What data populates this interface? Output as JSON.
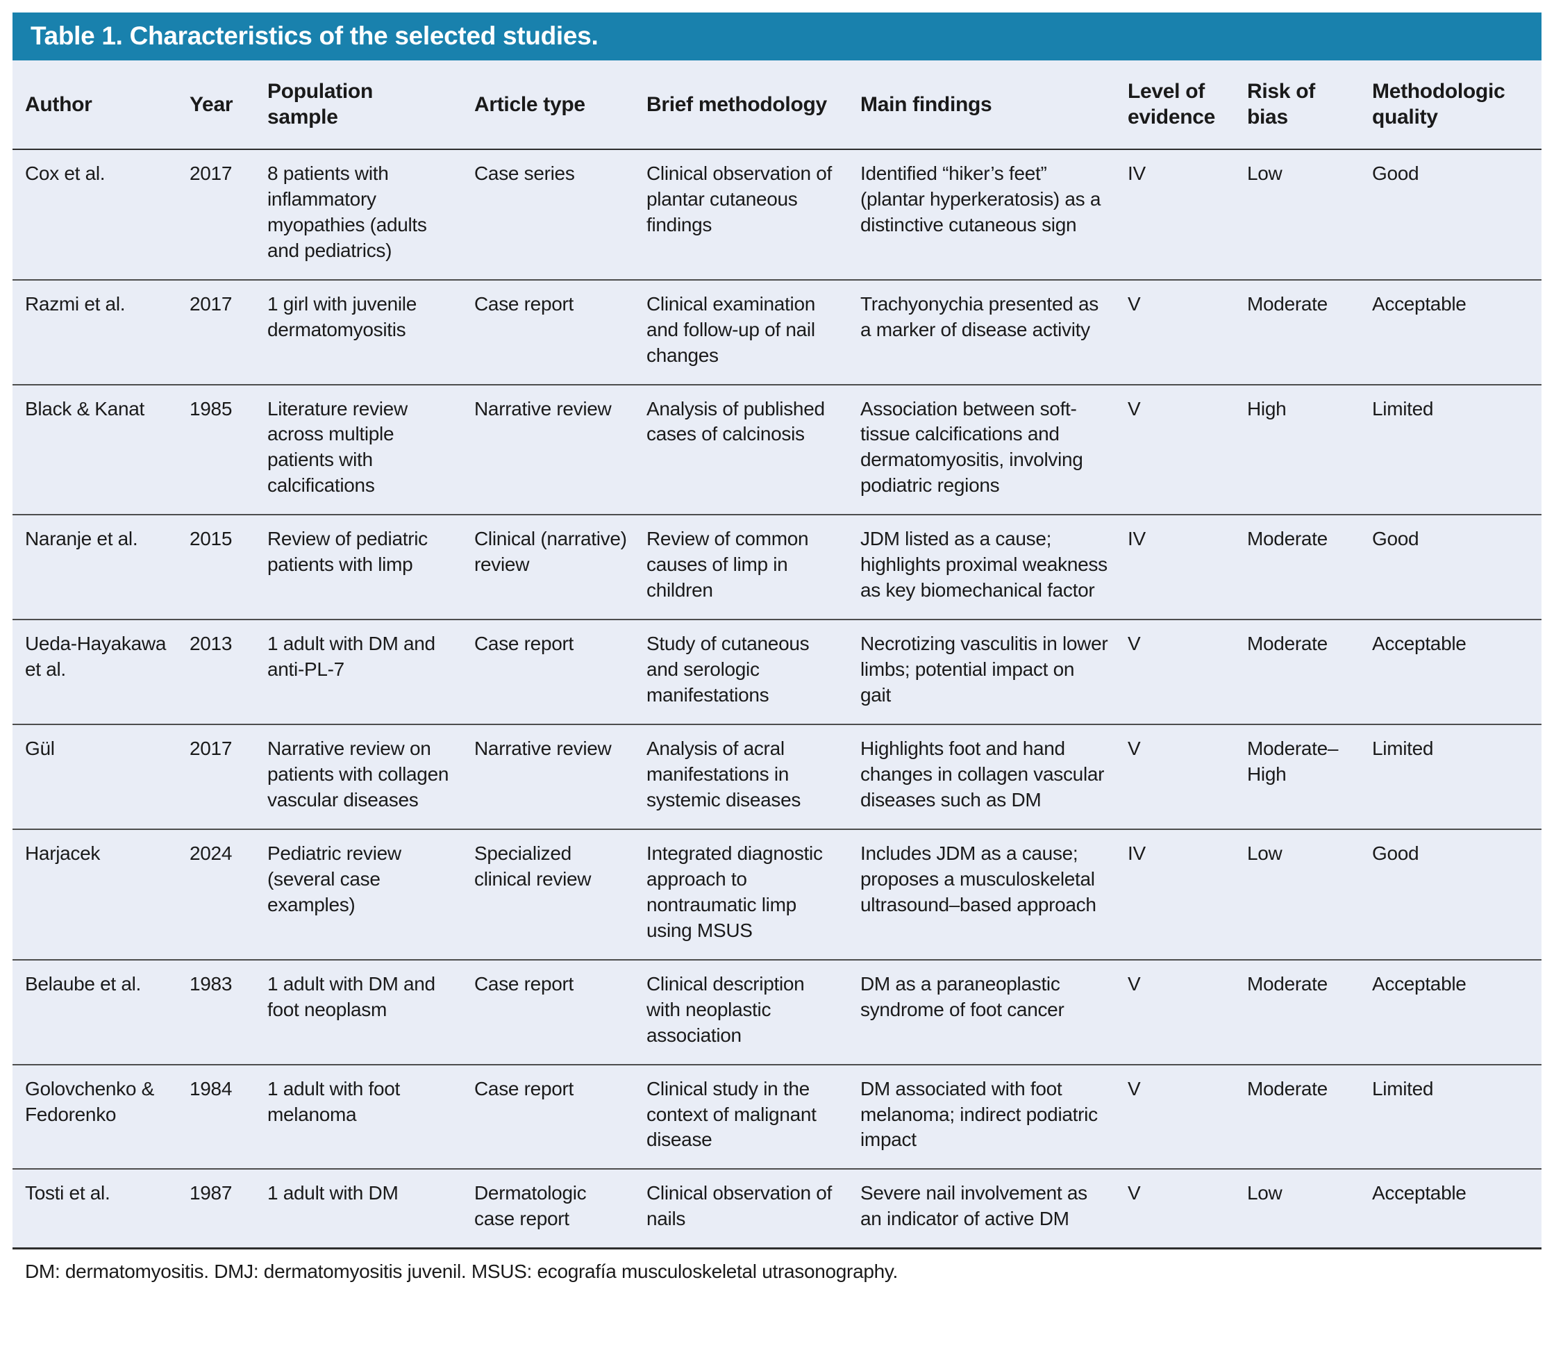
{
  "table": {
    "title": "Table 1. Characteristics of the selected studies.",
    "columns": [
      "Author",
      "Year",
      "Population sample",
      "Article type",
      "Brief methodology",
      "Main findings",
      "Level of evidence",
      "Risk of bias",
      "Methodologic quality"
    ],
    "rows": [
      [
        "Cox et al.",
        "2017",
        "8 patients with inflammatory myopathies (adults and pediatrics)",
        "Case series",
        "Clinical observation of plantar cutaneous findings",
        "Identified “hiker’s feet” (plantar hyperkeratosis) as a distinctive cutaneous sign",
        "IV",
        "Low",
        "Good"
      ],
      [
        "Razmi et al.",
        "2017",
        "1 girl with juvenile dermatomyositis",
        "Case report",
        "Clinical examination and follow-up of nail changes",
        "Trachyonychia presented as a marker of disease activity",
        "V",
        "Moderate",
        "Acceptable"
      ],
      [
        "Black & Kanat",
        "1985",
        "Literature review across multiple patients with calcifications",
        "Narrative review",
        "Analysis of published cases of calcinosis",
        "Association between soft-tissue calcifications and dermatomyositis, involving podiatric regions",
        "V",
        "High",
        "Limited"
      ],
      [
        "Naranje et al.",
        "2015",
        "Review of pediatric patients with limp",
        "Clinical (narrative) review",
        "Review of common causes of limp in children",
        "JDM listed as a cause; highlights proximal weakness as key biomechanical factor",
        "IV",
        "Moderate",
        "Good"
      ],
      [
        "Ueda-Hayakawa et al.",
        "2013",
        "1 adult with DM and anti-PL-7",
        "Case report",
        "Study of cutaneous and serologic manifestations",
        "Necrotizing vasculitis in lower limbs; potential impact on gait",
        "V",
        "Moderate",
        "Acceptable"
      ],
      [
        "Gül",
        "2017",
        "Narrative review on patients with collagen vascular diseases",
        "Narrative review",
        "Analysis of acral manifestations in systemic diseases",
        "Highlights foot and hand changes in collagen vascular diseases such as DM",
        "V",
        "Moderate–High",
        "Limited"
      ],
      [
        "Harjacek",
        "2024",
        "Pediatric review (several case examples)",
        "Specialized clinical review",
        "Integrated diagnostic approach to nontraumatic limp using MSUS",
        "Includes JDM as a cause; proposes a musculoskeletal ultrasound–based approach",
        "IV",
        "Low",
        "Good"
      ],
      [
        "Belaube et al.",
        "1983",
        "1 adult with DM and foot neoplasm",
        "Case report",
        "Clinical description with neoplastic association",
        "DM as a paraneoplastic syndrome of foot cancer",
        "V",
        "Moderate",
        "Acceptable"
      ],
      [
        "Golovchenko & Fedorenko",
        "1984",
        "1 adult with foot melanoma",
        "Case report",
        "Clinical study in the context of malignant disease",
        "DM associated with foot melanoma; indirect podiatric impact",
        "V",
        "Moderate",
        "Limited"
      ],
      [
        "Tosti et al.",
        "1987",
        "1 adult with DM",
        "Dermatologic case report",
        "Clinical observation of nails",
        "Severe nail involvement as an indicator of active DM",
        "V",
        "Low",
        "Acceptable"
      ]
    ],
    "footnote": "DM: dermatomyositis. DMJ: dermatomyositis juvenil. MSUS: ecografía musculoskeletal utrasonography.",
    "colors": {
      "header_bar": "#1981ad",
      "table_bg": "#e9edf6",
      "text": "#1a1a1a",
      "rule": "#4d4d4d"
    }
  }
}
